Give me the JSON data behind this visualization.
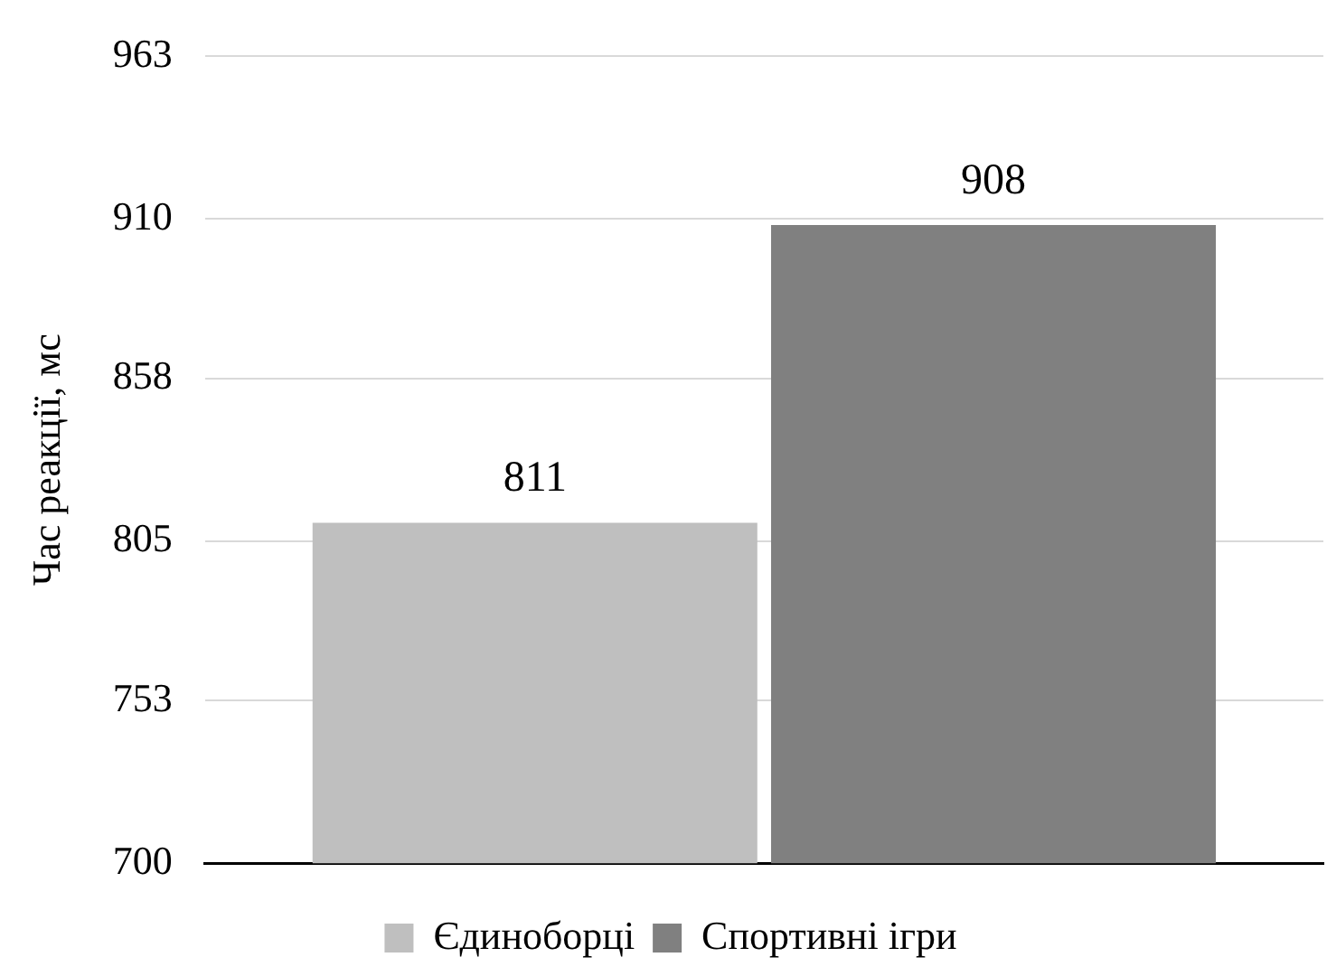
{
  "chart_data": {
    "type": "bar",
    "ylabel": "Час реакції, мс",
    "categories": [
      null
    ],
    "series": [
      {
        "name": "Єдиноборці",
        "color": "#bfbfbf",
        "values": [
          811
        ]
      },
      {
        "name": "Спортивні ігри",
        "color": "#808080",
        "values": [
          908
        ]
      }
    ],
    "ylim": [
      700,
      963
    ],
    "yticks": [
      700,
      753,
      805,
      858,
      910,
      963
    ],
    "grid": "y",
    "legend": "bottom",
    "data_labels": true
  }
}
